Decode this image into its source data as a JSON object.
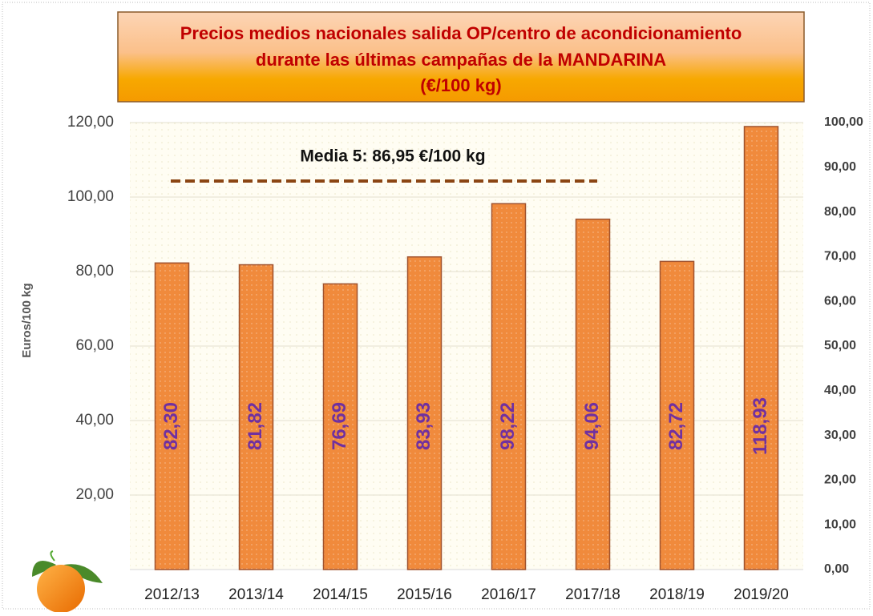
{
  "chart_data": {
    "type": "bar",
    "title": [
      "Precios medios nacionales salida OP/centro de acondicionamiento",
      "durante las últimas campañas  de  la MANDARINA",
      "(€/100 kg)"
    ],
    "y_label": "Euros/100 kg",
    "annotation": "Media 5: 86,95 €/100 kg",
    "categories": [
      "2012/13",
      "2013/14",
      "2014/15",
      "2015/16",
      "2016/17",
      "2017/18",
      "2018/19",
      "2019/20"
    ],
    "values": [
      82.3,
      81.82,
      76.69,
      83.93,
      98.22,
      94.06,
      82.72,
      118.93
    ],
    "value_labels": [
      "82,30",
      "81,82",
      "76,69",
      "83,93",
      "98,22",
      "94,06",
      "82,72",
      "118,93"
    ],
    "color": "#f08a3c",
    "ylim": [
      0,
      120
    ],
    "yticks": [
      {
        "value": 20,
        "label": "20,00"
      },
      {
        "value": 40,
        "label": "40,00"
      },
      {
        "value": 60,
        "label": "60,00"
      },
      {
        "value": 80,
        "label": "80,00"
      },
      {
        "value": 100,
        "label": "100,00"
      },
      {
        "value": 120,
        "label": "120,00"
      }
    ],
    "y2lim": [
      0,
      100
    ],
    "y2ticks": [
      {
        "value": 0,
        "label": "0,00"
      },
      {
        "value": 10,
        "label": "10,00"
      },
      {
        "value": 20,
        "label": "20,00"
      },
      {
        "value": 30,
        "label": "30,00"
      },
      {
        "value": 40,
        "label": "40,00"
      },
      {
        "value": 50,
        "label": "50,00"
      },
      {
        "value": 60,
        "label": "60,00"
      },
      {
        "value": 70,
        "label": "70,00"
      },
      {
        "value": 80,
        "label": "80,00"
      },
      {
        "value": 90,
        "label": "90,00"
      },
      {
        "value": 100,
        "label": "100,00"
      }
    ],
    "grid": true
  }
}
